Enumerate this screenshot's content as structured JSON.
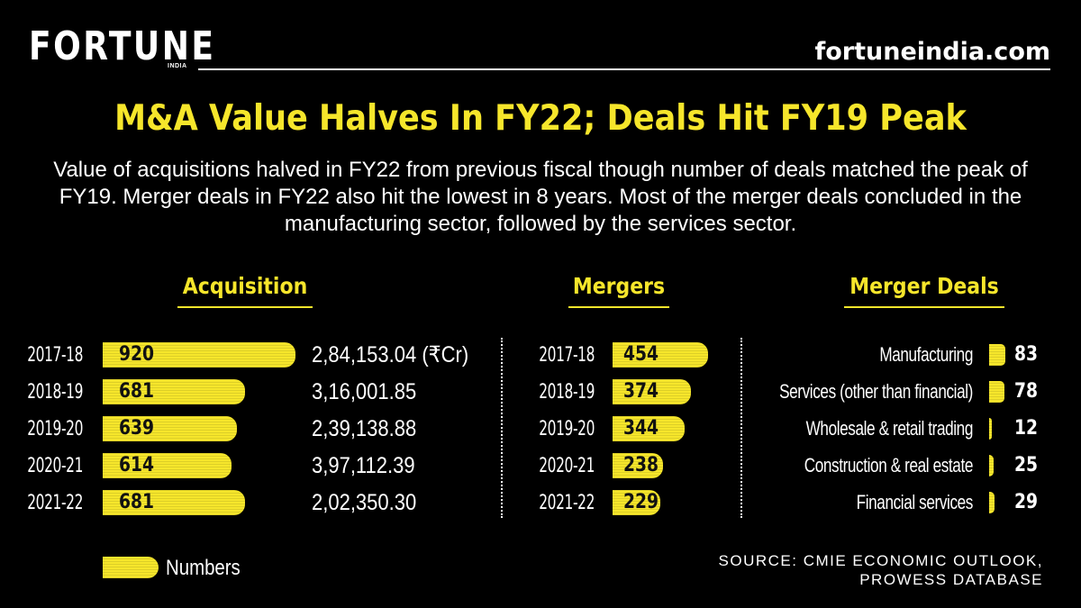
{
  "brand": {
    "logo": "FORTUNE",
    "logo_sub": "INDIA",
    "site": "fortuneindia.com"
  },
  "header": {
    "title": "M&A Value Halves In FY22; Deals Hit FY19 Peak",
    "subtitle": "Value of acquisitions halved in FY22 from previous fiscal though number of deals matched the peak of FY19. Merger deals in FY22 also hit the lowest in 8 years. Most of the merger deals concluded in the manufacturing sector, followed by the services sector."
  },
  "colors": {
    "bar": "#f6e62b",
    "background": "#000000",
    "text": "#ffffff"
  },
  "chart_data": [
    {
      "type": "bar",
      "orientation": "horizontal",
      "title": "Acquisition",
      "categories": [
        "2017-18",
        "2018-19",
        "2019-20",
        "2020-21",
        "2021-22"
      ],
      "values": [
        920,
        681,
        639,
        614,
        681
      ],
      "values_text": [
        "920",
        "681",
        "639",
        "614",
        "681"
      ],
      "secondary_values": [
        "2,84,153.04 (₹Cr)",
        "3,16,001.85",
        "2,39,138.88",
        "3,97,112.39",
        "2,02,350.30"
      ],
      "xlim": [
        0,
        920
      ]
    },
    {
      "type": "bar",
      "orientation": "horizontal",
      "title": "Mergers",
      "categories": [
        "2017-18",
        "2018-19",
        "2019-20",
        "2020-21",
        "2021-22"
      ],
      "values": [
        454,
        374,
        344,
        238,
        229
      ],
      "values_text": [
        "454",
        "374",
        "344",
        "238",
        "229"
      ],
      "xlim": [
        0,
        454
      ]
    },
    {
      "type": "bar",
      "orientation": "horizontal",
      "title": "Merger Deals",
      "categories": [
        "Manufacturing",
        "Services (other than financial)",
        "Wholesale & retail trading",
        "Construction & real estate",
        "Financial services"
      ],
      "values": [
        83,
        78,
        12,
        25,
        29
      ],
      "values_text": [
        "83",
        "78",
        "12",
        "25",
        "29"
      ],
      "xlim": [
        0,
        83
      ]
    }
  ],
  "legend": {
    "label": "Numbers"
  },
  "source": {
    "line1": "SOURCE: CMIE ECONOMIC OUTLOOK,",
    "line2": "PROWESS DATABASE"
  }
}
